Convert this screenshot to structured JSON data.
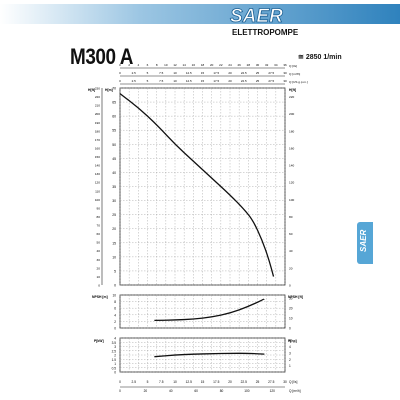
{
  "header": {
    "brand": "SAER",
    "tagline": "ELETTROPOMPE",
    "model": "M300 A",
    "speed": "2850 1/min",
    "banner_color": "#3d8fc6",
    "side_tab_label": "SAER"
  },
  "chart_data": [
    {
      "type": "line",
      "name": "head",
      "left_axis_outer_label": "H[ft]",
      "left_axis_inner_label": "H[m]",
      "right_axis_label": "H[ft]",
      "x_axis_labels": [
        "Q [l/s]",
        "Q [m³/h]",
        "Q [US g.p.m.]",
        "Q [Imp g.p.m.]"
      ],
      "xlim": [
        0,
        36
      ],
      "ylim": [
        0,
        70
      ],
      "y_ticks_m": [
        0,
        5,
        10,
        15,
        20,
        25,
        30,
        35,
        40,
        45,
        50,
        55,
        60,
        65,
        70
      ],
      "y_ticks_ft_left": [
        0,
        10,
        20,
        30,
        40,
        50,
        60,
        70,
        80,
        90,
        100,
        110,
        120,
        130,
        140,
        150,
        160,
        170,
        180,
        190,
        200,
        210,
        220,
        230
      ],
      "y_ticks_ft_right": [
        0,
        20,
        40,
        60,
        80,
        100,
        120,
        140,
        160,
        180,
        200,
        220
      ],
      "x_ticks_m3h": [
        0,
        2.5,
        5,
        7.5,
        10,
        12.5,
        15,
        17.5,
        20,
        22.5,
        25,
        27.5,
        30
      ],
      "x_ticks_top_a": [
        0,
        2,
        4,
        6,
        8,
        10,
        12,
        14,
        16,
        18,
        20,
        22,
        24,
        26,
        28,
        30,
        32,
        34,
        36
      ],
      "x_ticks_top_b": [
        0,
        2.5,
        5,
        7.5,
        10,
        12.5,
        15,
        17.5,
        20,
        22.5,
        25,
        27.5,
        30
      ],
      "x": [
        0,
        4,
        8,
        12,
        16,
        20,
        24,
        27,
        29,
        31,
        32.5,
        33.5
      ],
      "values": [
        68,
        63,
        57,
        50,
        44,
        38,
        32,
        27,
        23,
        16,
        9,
        3
      ]
    },
    {
      "type": "line",
      "name": "npsh",
      "left_axis_label": "NPSH [m]",
      "right_axis_label": "NPSH [ft]",
      "ylim": [
        0,
        10
      ],
      "y_ticks": [
        0,
        2,
        4,
        6,
        8,
        10
      ],
      "y_ticks_right": [
        0,
        10,
        20,
        30
      ],
      "x": [
        7.5,
        12,
        16,
        20,
        24,
        28,
        31.5
      ],
      "values": [
        2.3,
        2.4,
        2.7,
        3.3,
        4.5,
        6.5,
        8.8
      ]
    },
    {
      "type": "line",
      "name": "power",
      "left_axis_label": "P[kW]",
      "right_axis_label": "P[hp]",
      "ylim": [
        0,
        4
      ],
      "y_ticks": [
        0,
        0.5,
        1,
        1.5,
        2,
        2.5,
        3,
        3.5,
        4
      ],
      "y_ticks_right": [
        1,
        2,
        3,
        4,
        5
      ],
      "x": [
        7.5,
        12,
        16,
        20,
        24,
        28,
        31.5
      ],
      "values": [
        1.8,
        2.0,
        2.1,
        2.15,
        2.2,
        2.2,
        2.1
      ],
      "x_ticks": [
        0,
        2.5,
        5,
        7.5,
        10,
        12.5,
        15,
        17.5,
        20,
        22.5,
        25,
        27.5,
        30
      ],
      "x_ticks_bottom": [
        0,
        20,
        40,
        60,
        80,
        100,
        120
      ],
      "x_label_bottom": "Q [l/s]",
      "x_label_bottom2": "Q [m³/h]"
    }
  ]
}
